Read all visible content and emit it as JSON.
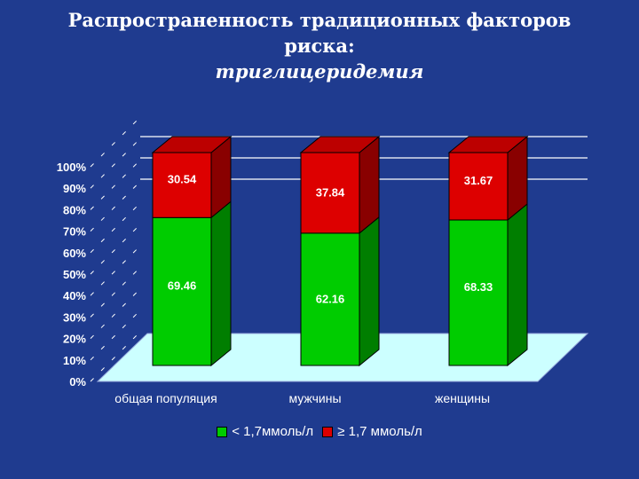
{
  "slide": {
    "title_line1": "Распространенность традиционных факторов",
    "title_line2": "риска:",
    "title_line3": "триглицеридемия"
  },
  "chart_data": {
    "type": "bar",
    "stacked": true,
    "percent": true,
    "three_d": true,
    "categories": [
      "общая популяция",
      "мужчины",
      "женщины"
    ],
    "series": [
      {
        "name": "< 1,7ммоль/л",
        "values": [
          69.46,
          62.16,
          68.33
        ],
        "color": "#00cc00"
      },
      {
        "name": "≥ 1,7 ммоль/л",
        "values": [
          30.54,
          37.84,
          31.67
        ],
        "color": "#dd0000"
      }
    ],
    "value_labels": [
      [
        "69.46",
        "62.16",
        "68.33"
      ],
      [
        "30.54",
        "37.84",
        "31.67"
      ]
    ],
    "ytick_labels": [
      "0%",
      "10%",
      "20%",
      "30%",
      "40%",
      "50%",
      "60%",
      "70%",
      "80%",
      "90%",
      "100%"
    ],
    "ylim": [
      0,
      100
    ],
    "grid": true,
    "floor_color": "#ccffff",
    "legend_position": "bottom"
  }
}
